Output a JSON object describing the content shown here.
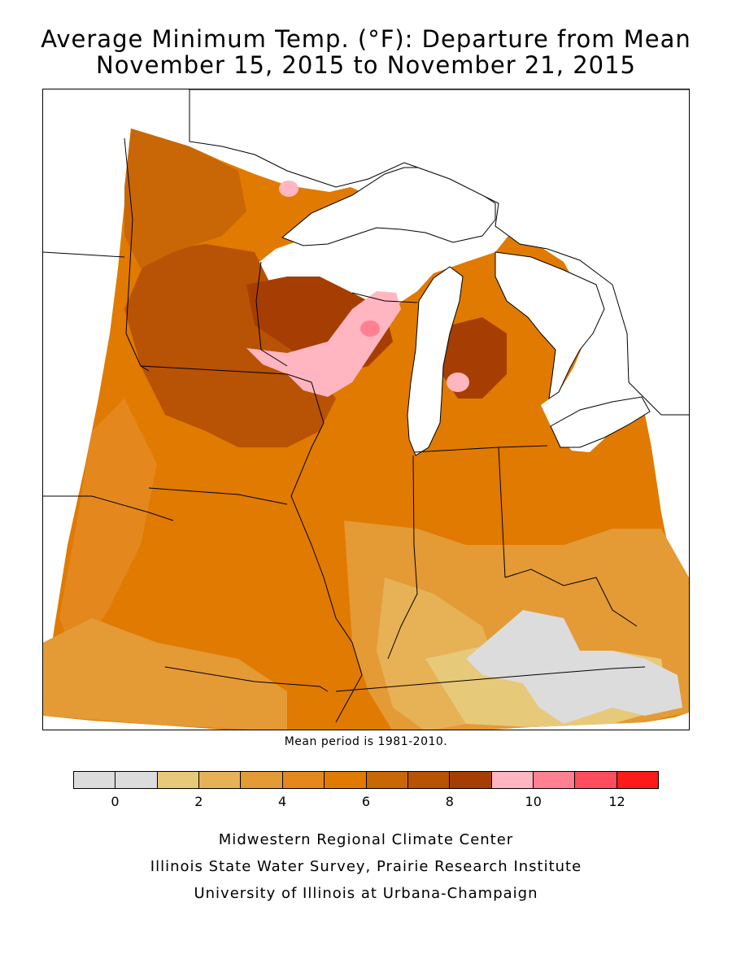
{
  "title": {
    "line1": "Average Minimum Temp. (°F): Departure from Mean",
    "line2": "November 15, 2015 to November 21, 2015"
  },
  "map": {
    "region": "Midwest United States",
    "fill_colors": {
      "below_1": "#dcdcdc",
      "1_2": "#e7c97a",
      "2_3": "#e6b255",
      "3_4": "#e49a35",
      "4_5": "#e4881e",
      "5_6": "#e07a00",
      "6_7": "#c96606",
      "7_8": "#b85205",
      "8_9": "#a63d02",
      "9_10": "#ffb6c1",
      "10_11": "#ff8090"
    },
    "water_color": "#ffffff"
  },
  "mean_note": "Mean period is 1981-2010.",
  "legend": {
    "colors": [
      "#dcdcdc",
      "#dcdcdc",
      "#e7c97a",
      "#e6b255",
      "#e49a35",
      "#e4881e",
      "#e07a00",
      "#c96606",
      "#b85205",
      "#a63d02",
      "#ffb6c1",
      "#ff8090",
      "#ff4d5e",
      "#ff1a1a"
    ],
    "tick_labels": [
      "0",
      "2",
      "4",
      "6",
      "8",
      "10",
      "12"
    ]
  },
  "credits": {
    "line1": "Midwestern Regional Climate Center",
    "line2": "Illinois State Water Survey, Prairie Research Institute",
    "line3": "University of Illinois at Urbana-Champaign"
  }
}
